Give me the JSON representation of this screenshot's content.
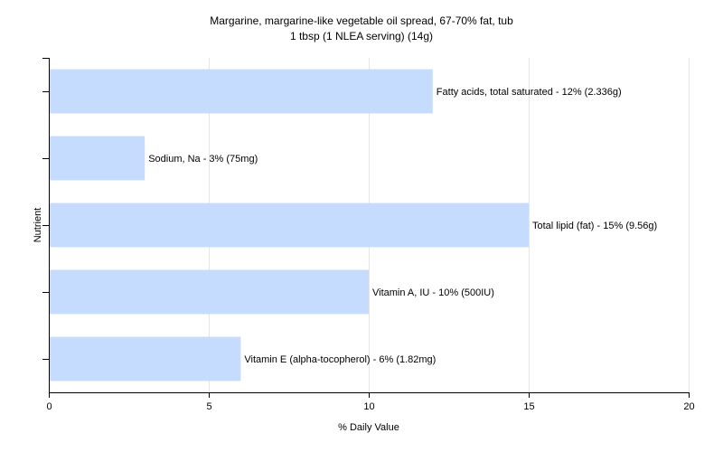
{
  "chart_data": {
    "type": "bar",
    "orientation": "horizontal",
    "title": "Margarine, margarine-like vegetable oil spread, 67-70% fat, tub",
    "subtitle": "1 tbsp (1 NLEA serving) (14g)",
    "xlabel": "% Daily Value",
    "ylabel": "Nutrient",
    "xlim": [
      0,
      20
    ],
    "xticks": [
      0,
      5,
      10,
      15,
      20
    ],
    "grid": true,
    "bar_color": "#c6dcff",
    "categories": [
      "Fatty acids, total saturated",
      "Sodium, Na",
      "Total lipid (fat)",
      "Vitamin A, IU",
      "Vitamin E (alpha-tocopherol)"
    ],
    "values": [
      12,
      3,
      15,
      10,
      6
    ],
    "data_labels": [
      "Fatty acids, total saturated - 12% (2.336g)",
      "Sodium, Na - 3% (75mg)",
      "Total lipid (fat) - 15% (9.56g)",
      "Vitamin A, IU - 10% (500IU)",
      "Vitamin E (alpha-tocopherol) - 6% (1.82mg)"
    ]
  }
}
